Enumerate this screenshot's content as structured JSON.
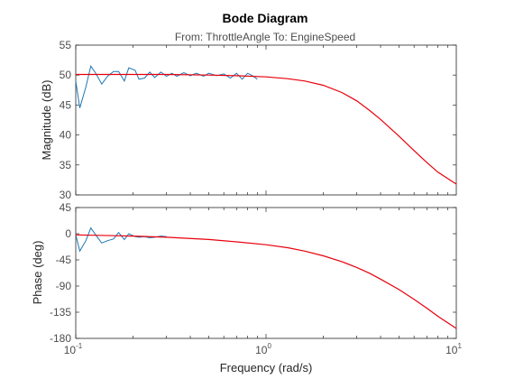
{
  "title": "Bode Diagram",
  "subtitle": "From: ThrottleAngle  To: EngineSpeed",
  "xlabel": "Frequency  (rad/s)",
  "colors": {
    "measured": "#1f77b4",
    "model": "#e8000b"
  },
  "x_ticks": [
    {
      "value": 0.1,
      "base": "10",
      "exp": "-1"
    },
    {
      "value": 1,
      "base": "10",
      "exp": "0"
    },
    {
      "value": 10,
      "base": "10",
      "exp": "1"
    }
  ],
  "chart_data": [
    {
      "type": "line",
      "panel": "magnitude",
      "ylabel": "Magnitude (dB)",
      "xscale": "log",
      "xlim": [
        0.1,
        10
      ],
      "ylim": [
        30,
        55
      ],
      "yticks": [
        30,
        35,
        40,
        45,
        50,
        55
      ],
      "grid": false,
      "series": [
        {
          "color": "#1f77b4",
          "x": [
            0.1,
            0.105,
            0.113,
            0.12,
            0.128,
            0.137,
            0.147,
            0.158,
            0.168,
            0.18,
            0.19,
            0.205,
            0.215,
            0.23,
            0.245,
            0.26,
            0.28,
            0.3,
            0.32,
            0.34,
            0.37,
            0.4,
            0.43,
            0.47,
            0.5,
            0.55,
            0.6,
            0.65,
            0.7,
            0.75,
            0.8,
            0.85,
            0.9
          ],
          "y": [
            49,
            44.5,
            48,
            51.5,
            50.2,
            48.5,
            49.8,
            50.6,
            50.6,
            49,
            51.2,
            50.8,
            49.3,
            49.5,
            50.5,
            49.6,
            50.5,
            49.8,
            50.3,
            49.8,
            50.4,
            49.9,
            50.3,
            49.8,
            50.3,
            49.9,
            50.2,
            49.5,
            50.3,
            49.3,
            50.3,
            49.9,
            49.3
          ]
        },
        {
          "color": "#e8000b",
          "x": [
            0.1,
            0.2,
            0.3,
            0.5,
            0.7,
            1,
            1.3,
            1.6,
            2,
            2.5,
            3,
            3.5,
            4,
            5,
            6,
            7,
            8,
            10
          ],
          "y": [
            50.1,
            50.1,
            50.1,
            50.0,
            49.9,
            49.7,
            49.4,
            49.0,
            48.3,
            47.1,
            45.7,
            44.1,
            42.6,
            39.8,
            37.4,
            35.4,
            33.8,
            31.8
          ]
        }
      ]
    },
    {
      "type": "line",
      "panel": "phase",
      "ylabel": "Phase (deg)",
      "xscale": "log",
      "xlim": [
        0.1,
        10
      ],
      "ylim": [
        -180,
        45
      ],
      "yticks": [
        -180,
        -135,
        -90,
        -45,
        0,
        45
      ],
      "grid": false,
      "series": [
        {
          "color": "#1f77b4",
          "x": [
            0.1,
            0.105,
            0.113,
            0.12,
            0.128,
            0.137,
            0.147,
            0.158,
            0.168,
            0.18,
            0.19,
            0.205,
            0.215,
            0.23,
            0.245,
            0.26,
            0.28,
            0.3
          ],
          "y": [
            -2,
            -30,
            -12,
            10,
            -3,
            -16,
            -12,
            -9,
            2,
            -10,
            0,
            -5,
            -6,
            -5,
            -7,
            -6,
            -4,
            -5
          ]
        },
        {
          "color": "#e8000b",
          "x": [
            0.1,
            0.2,
            0.3,
            0.5,
            0.7,
            1,
            1.3,
            1.6,
            2,
            2.5,
            3,
            3.5,
            4,
            5,
            6,
            7,
            8,
            10
          ],
          "y": [
            -2,
            -4,
            -6,
            -10,
            -14,
            -19,
            -24,
            -30,
            -38,
            -48,
            -58,
            -68,
            -78,
            -96,
            -113,
            -128,
            -142,
            -163
          ]
        }
      ]
    }
  ]
}
